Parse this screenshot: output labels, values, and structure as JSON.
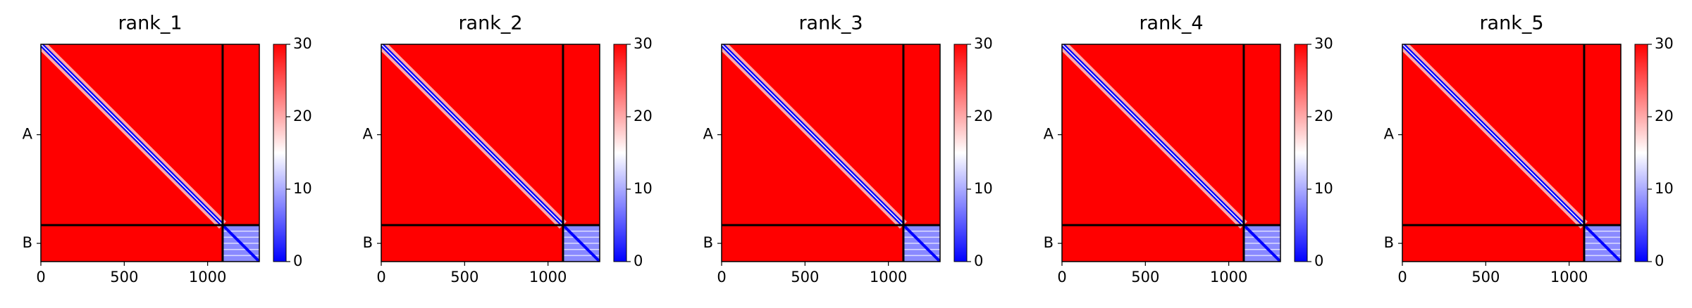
{
  "chart_data": [
    {
      "type": "heatmap",
      "title": "rank_1",
      "xlim": [
        0,
        1310
      ],
      "ylim": [
        1310,
        0
      ],
      "xticks": [
        0,
        500,
        1000
      ],
      "yticks": [
        {
          "value": 545,
          "label": "A"
        },
        {
          "value": 1200,
          "label": "B"
        }
      ],
      "chain_boundary": 1090,
      "clim": [
        0,
        30
      ],
      "cticks": [
        0,
        10,
        20,
        30
      ],
      "colors": [
        "#0000ff",
        "#ffffff",
        "#ff0000"
      ]
    },
    {
      "type": "heatmap",
      "title": "rank_2",
      "xlim": [
        0,
        1310
      ],
      "ylim": [
        1310,
        0
      ],
      "xticks": [
        0,
        500,
        1000
      ],
      "yticks": [
        {
          "value": 545,
          "label": "A"
        },
        {
          "value": 1200,
          "label": "B"
        }
      ],
      "chain_boundary": 1090,
      "clim": [
        0,
        30
      ],
      "cticks": [
        0,
        10,
        20,
        30
      ],
      "colors": [
        "#0000ff",
        "#ffffff",
        "#ff0000"
      ]
    },
    {
      "type": "heatmap",
      "title": "rank_3",
      "xlim": [
        0,
        1310
      ],
      "ylim": [
        1310,
        0
      ],
      "xticks": [
        0,
        500,
        1000
      ],
      "yticks": [
        {
          "value": 545,
          "label": "A"
        },
        {
          "value": 1200,
          "label": "B"
        }
      ],
      "chain_boundary": 1090,
      "clim": [
        0,
        30
      ],
      "cticks": [
        0,
        10,
        20,
        30
      ],
      "colors": [
        "#0000ff",
        "#ffffff",
        "#ff0000"
      ]
    },
    {
      "type": "heatmap",
      "title": "rank_4",
      "xlim": [
        0,
        1310
      ],
      "ylim": [
        1310,
        0
      ],
      "xticks": [
        0,
        500,
        1000
      ],
      "yticks": [
        {
          "value": 545,
          "label": "A"
        },
        {
          "value": 1200,
          "label": "B"
        }
      ],
      "chain_boundary": 1090,
      "clim": [
        0,
        30
      ],
      "cticks": [
        0,
        10,
        20,
        30
      ],
      "colors": [
        "#0000ff",
        "#ffffff",
        "#ff0000"
      ]
    },
    {
      "type": "heatmap",
      "title": "rank_5",
      "xlim": [
        0,
        1310
      ],
      "ylim": [
        1310,
        0
      ],
      "xticks": [
        0,
        500,
        1000
      ],
      "yticks": [
        {
          "value": 545,
          "label": "A"
        },
        {
          "value": 1200,
          "label": "B"
        }
      ],
      "chain_boundary": 1090,
      "clim": [
        0,
        30
      ],
      "cticks": [
        0,
        10,
        20,
        30
      ],
      "colors": [
        "#0000ff",
        "#ffffff",
        "#ff0000"
      ]
    }
  ]
}
